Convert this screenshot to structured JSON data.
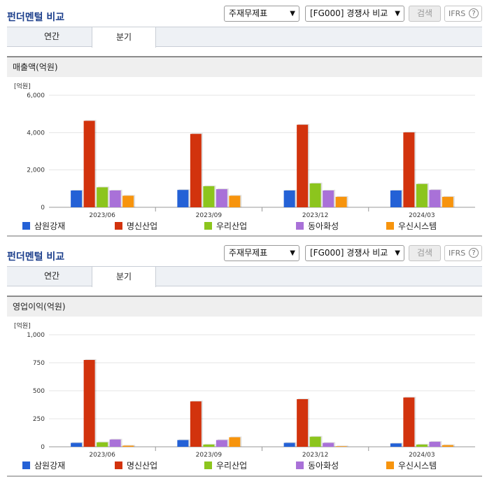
{
  "panels": [
    {
      "title": "펀더멘털 비교",
      "select1": "주재무제표",
      "select2": "[FG000] 경쟁사 비교",
      "search_label": "검색",
      "ifrs_label": "IFRS",
      "help_glyph": "?",
      "tabs": [
        "연간",
        "분기"
      ],
      "active_tab": "분기",
      "section_title": "매출액(억원)",
      "unit": "[억원]"
    },
    {
      "title": "펀더멘털 비교",
      "select1": "주재무제표",
      "select2": "[FG000] 경쟁사 비교",
      "search_label": "검색",
      "ifrs_label": "IFRS",
      "help_glyph": "?",
      "tabs": [
        "연간",
        "분기"
      ],
      "active_tab": "분기",
      "section_title": "영업이익(억원)",
      "unit": "[억원]"
    }
  ],
  "colors": [
    "#2461d6",
    "#d2330d",
    "#8cc51d",
    "#a971d8",
    "#f7940d"
  ],
  "chart_data": [
    {
      "type": "bar",
      "title": "매출액(억원)",
      "ylabel": "[억원]",
      "categories": [
        "2023/06",
        "2023/09",
        "2023/12",
        "2024/03"
      ],
      "ylim": [
        0,
        6000
      ],
      "yticks": [
        0,
        2000,
        4000,
        6000
      ],
      "ytick_labels": [
        "0",
        "2,000",
        "4,000",
        "6,000"
      ],
      "grid": true,
      "legend": "bottom",
      "series": [
        {
          "name": "삼원강재",
          "values": [
            900,
            930,
            900,
            900
          ]
        },
        {
          "name": "명신산업",
          "values": [
            4630,
            3930,
            4420,
            4010
          ]
        },
        {
          "name": "우리산업",
          "values": [
            1070,
            1130,
            1280,
            1250
          ]
        },
        {
          "name": "동아화성",
          "values": [
            900,
            970,
            900,
            930
          ]
        },
        {
          "name": "우신시스템",
          "values": [
            620,
            620,
            560,
            560
          ]
        }
      ]
    },
    {
      "type": "bar",
      "title": "영업이익(억원)",
      "ylabel": "[억원]",
      "categories": [
        "2023/06",
        "2023/09",
        "2023/12",
        "2024/03"
      ],
      "ylim": [
        0,
        1000
      ],
      "yticks": [
        0,
        250,
        500,
        750,
        1000
      ],
      "ytick_labels": [
        "0",
        "250",
        "500",
        "750",
        "1,000"
      ],
      "grid": true,
      "legend": "bottom",
      "series": [
        {
          "name": "삼원강재",
          "values": [
            35,
            60,
            35,
            30
          ]
        },
        {
          "name": "명신산업",
          "values": [
            775,
            405,
            425,
            440
          ]
        },
        {
          "name": "우리산업",
          "values": [
            40,
            20,
            90,
            20
          ]
        },
        {
          "name": "동아화성",
          "values": [
            65,
            60,
            35,
            45
          ]
        },
        {
          "name": "우신시스템",
          "values": [
            10,
            85,
            5,
            15
          ]
        }
      ]
    }
  ]
}
